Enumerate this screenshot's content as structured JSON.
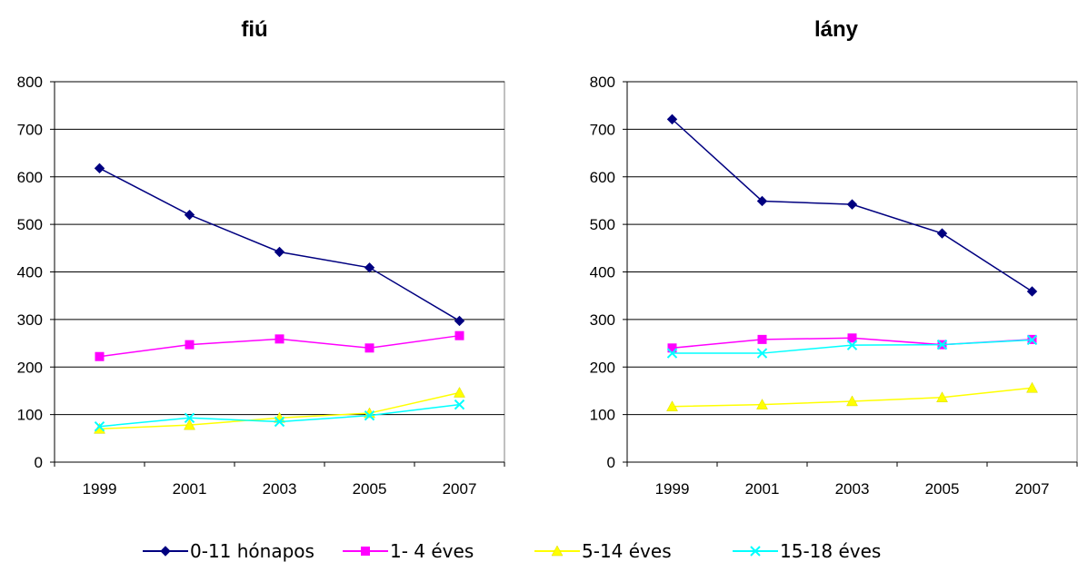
{
  "chart_data": [
    {
      "type": "line",
      "title": "fiú",
      "categories": [
        "1999",
        "2001",
        "2003",
        "2005",
        "2007"
      ],
      "ylim": [
        0,
        800
      ],
      "yticks": [
        0,
        100,
        200,
        300,
        400,
        500,
        600,
        700,
        800
      ],
      "grid": true,
      "series": [
        {
          "name": "0-11 hónapos",
          "values": [
            618,
            520,
            442,
            409,
            297
          ]
        },
        {
          "name": "1- 4 éves",
          "values": [
            222,
            247,
            259,
            240,
            266
          ]
        },
        {
          "name": "5-14 éves",
          "values": [
            70,
            78,
            93,
            103,
            146
          ]
        },
        {
          "name": "15-18 éves",
          "values": [
            75,
            93,
            85,
            98,
            121
          ]
        }
      ]
    },
    {
      "type": "line",
      "title": "lány",
      "categories": [
        "1999",
        "2001",
        "2003",
        "2005",
        "2007"
      ],
      "ylim": [
        0,
        800
      ],
      "yticks": [
        0,
        100,
        200,
        300,
        400,
        500,
        600,
        700,
        800
      ],
      "grid": true,
      "series": [
        {
          "name": "0-11 hónapos",
          "values": [
            721,
            549,
            542,
            481,
            359
          ]
        },
        {
          "name": "1- 4 éves",
          "values": [
            240,
            258,
            261,
            247,
            258
          ]
        },
        {
          "name": "5-14 éves",
          "values": [
            117,
            121,
            128,
            136,
            156
          ]
        },
        {
          "name": "15-18 éves",
          "values": [
            229,
            229,
            246,
            247,
            257
          ]
        }
      ]
    }
  ],
  "legend": {
    "position": "bottom",
    "items": [
      {
        "label": "0-11 hónapos",
        "color": "#000080",
        "marker": "diamond"
      },
      {
        "label": "1- 4 éves",
        "color": "#FF00FF",
        "marker": "square"
      },
      {
        "label": "5-14 éves",
        "color": "#FFFF00",
        "marker": "triangle"
      },
      {
        "label": "15-18 éves",
        "color": "#00FFFF",
        "marker": "x"
      }
    ]
  }
}
